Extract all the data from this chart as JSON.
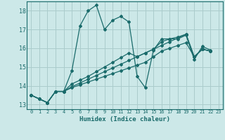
{
  "xlabel": "Humidex (Indice chaleur)",
  "bg_color": "#cce8e8",
  "grid_color": "#aacccc",
  "line_color": "#1a6b6b",
  "xlim": [
    -0.5,
    23.5
  ],
  "ylim": [
    12.75,
    18.5
  ],
  "yticks": [
    13,
    14,
    15,
    16,
    17,
    18
  ],
  "xticks": [
    0,
    1,
    2,
    3,
    4,
    5,
    6,
    7,
    8,
    9,
    10,
    11,
    12,
    13,
    14,
    15,
    16,
    17,
    18,
    19,
    20,
    21,
    22,
    23
  ],
  "series": [
    {
      "x": [
        0,
        1,
        2,
        3,
        4,
        5,
        6,
        7,
        8,
        9,
        10,
        11,
        12,
        13,
        14,
        15,
        16,
        17,
        18,
        19,
        20,
        21,
        22
      ],
      "y": [
        13.5,
        13.3,
        13.1,
        13.7,
        13.7,
        14.8,
        17.2,
        18.0,
        18.3,
        17.0,
        17.5,
        17.7,
        17.4,
        14.5,
        13.9,
        15.9,
        16.5,
        16.5,
        16.5,
        16.7,
        15.4,
        16.1,
        15.9
      ]
    },
    {
      "x": [
        0,
        1,
        2,
        3,
        4,
        5,
        6,
        7,
        8,
        9,
        10,
        11,
        12,
        13,
        14,
        15,
        16,
        17,
        18,
        19,
        20,
        21,
        22
      ],
      "y": [
        13.5,
        13.3,
        13.1,
        13.7,
        13.7,
        13.9,
        14.05,
        14.2,
        14.35,
        14.5,
        14.65,
        14.8,
        14.95,
        15.1,
        15.25,
        15.55,
        15.85,
        16.0,
        16.15,
        16.3,
        15.55,
        15.95,
        15.85
      ]
    },
    {
      "x": [
        0,
        1,
        2,
        3,
        4,
        5,
        6,
        7,
        8,
        9,
        10,
        11,
        12,
        13,
        14,
        15,
        16,
        17,
        18,
        19,
        20,
        21,
        22
      ],
      "y": [
        13.5,
        13.3,
        13.1,
        13.7,
        13.7,
        13.95,
        14.15,
        14.35,
        14.55,
        14.75,
        14.95,
        15.15,
        15.35,
        15.55,
        15.75,
        15.95,
        16.15,
        16.35,
        16.55,
        16.75,
        15.55,
        15.95,
        15.85
      ]
    },
    {
      "x": [
        0,
        1,
        2,
        3,
        4,
        5,
        6,
        7,
        8,
        9,
        10,
        11,
        12,
        13,
        14,
        15,
        16,
        17,
        18,
        19,
        20,
        21,
        22
      ],
      "y": [
        13.5,
        13.3,
        13.1,
        13.7,
        13.7,
        14.1,
        14.3,
        14.5,
        14.75,
        15.0,
        15.25,
        15.5,
        15.75,
        15.55,
        15.75,
        15.95,
        16.35,
        16.5,
        16.6,
        16.75,
        15.55,
        15.95,
        15.85
      ]
    }
  ]
}
